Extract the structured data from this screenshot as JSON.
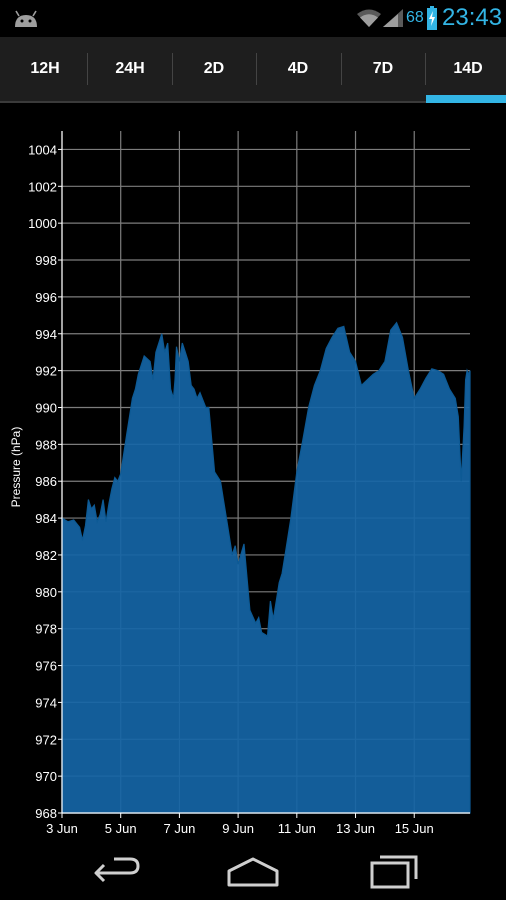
{
  "status_bar": {
    "battery_percent": "68",
    "time": "23:43",
    "icons": [
      "android-icon",
      "wifi-icon",
      "signal-icon",
      "battery-charging-icon"
    ],
    "accent_color": "#33b5e5"
  },
  "tabs": [
    {
      "label": "12H",
      "selected": false
    },
    {
      "label": "24H",
      "selected": false
    },
    {
      "label": "2D",
      "selected": false
    },
    {
      "label": "4D",
      "selected": false
    },
    {
      "label": "7D",
      "selected": false
    },
    {
      "label": "14D",
      "selected": true
    }
  ],
  "nav": {
    "icons": [
      "back-icon",
      "home-icon",
      "recent-apps-icon"
    ]
  },
  "chart_data": {
    "type": "area",
    "title": "",
    "xlabel": "",
    "ylabel": "Pressure (hPa)",
    "ylim": [
      968,
      1005
    ],
    "yticks": [
      968,
      970,
      972,
      974,
      976,
      978,
      980,
      982,
      984,
      986,
      988,
      990,
      992,
      994,
      996,
      998,
      1000,
      1002,
      1004
    ],
    "xlim": [
      3.0,
      16.9
    ],
    "xticks": [
      {
        "value": 3,
        "label": "3 Jun"
      },
      {
        "value": 5,
        "label": "5 Jun"
      },
      {
        "value": 7,
        "label": "7 Jun"
      },
      {
        "value": 9,
        "label": "9 Jun"
      },
      {
        "value": 11,
        "label": "11 Jun"
      },
      {
        "value": 13,
        "label": "13 Jun"
      },
      {
        "value": 15,
        "label": "15 Jun"
      }
    ],
    "grid": true,
    "fill_color": "#1565a6",
    "line_color": "#0d5a95",
    "series": [
      {
        "x": [
          3.0,
          3.2,
          3.4,
          3.6,
          3.7,
          3.8,
          3.9,
          4.0,
          4.1,
          4.2,
          4.3,
          4.4,
          4.5,
          4.6,
          4.7,
          4.8,
          4.9,
          5.0,
          5.2,
          5.4,
          5.5,
          5.6,
          5.8,
          6.0,
          6.1,
          6.2,
          6.4,
          6.5,
          6.6,
          6.7,
          6.8,
          6.85,
          6.9,
          7.0,
          7.1,
          7.2,
          7.3,
          7.4,
          7.5,
          7.6,
          7.7,
          7.8,
          7.9,
          8.0,
          8.2,
          8.4,
          8.5,
          8.6,
          8.8,
          8.9,
          9.0,
          9.2,
          9.4,
          9.6,
          9.7,
          9.8,
          10.0,
          10.1,
          10.2,
          10.4,
          10.5,
          10.6,
          10.7,
          10.8,
          11.0,
          11.2,
          11.4,
          11.6,
          11.8,
          12.0,
          12.2,
          12.4,
          12.6,
          12.8,
          13.0,
          13.2,
          13.4,
          13.6,
          13.8,
          14.0,
          14.2,
          14.4,
          14.6,
          14.8,
          15.0,
          15.2,
          15.4,
          15.6,
          15.8,
          16.0,
          16.2,
          16.4,
          16.5,
          16.6,
          16.7,
          16.75,
          16.8,
          16.85,
          16.9
        ],
        "y": [
          984.0,
          983.8,
          983.9,
          983.5,
          982.8,
          983.6,
          985.0,
          984.5,
          984.7,
          983.8,
          984.2,
          985.0,
          983.8,
          984.8,
          985.6,
          986.2,
          986.0,
          986.4,
          988.5,
          990.5,
          991.0,
          991.8,
          992.8,
          992.5,
          991.5,
          993.0,
          994.0,
          993.0,
          993.5,
          991.0,
          990.5,
          991.5,
          993.3,
          992.5,
          993.5,
          993.0,
          992.5,
          991.2,
          991.0,
          990.5,
          990.8,
          990.4,
          990.0,
          990.0,
          986.5,
          986.0,
          985.0,
          984.0,
          982.0,
          982.5,
          981.5,
          982.6,
          979.0,
          978.3,
          978.6,
          977.8,
          977.6,
          979.5,
          978.5,
          980.5,
          981.0,
          982.0,
          983.0,
          984.0,
          986.5,
          988.2,
          990.0,
          991.2,
          992.0,
          993.2,
          993.8,
          994.3,
          994.4,
          993.0,
          992.5,
          991.2,
          991.5,
          991.8,
          992.0,
          992.5,
          994.2,
          994.6,
          993.8,
          992.0,
          990.5,
          991.0,
          991.6,
          992.1,
          992.0,
          991.8,
          991.0,
          990.5,
          989.5,
          986.0,
          989.0,
          991.5,
          992.0,
          991.8,
          992.0
        ]
      }
    ]
  }
}
